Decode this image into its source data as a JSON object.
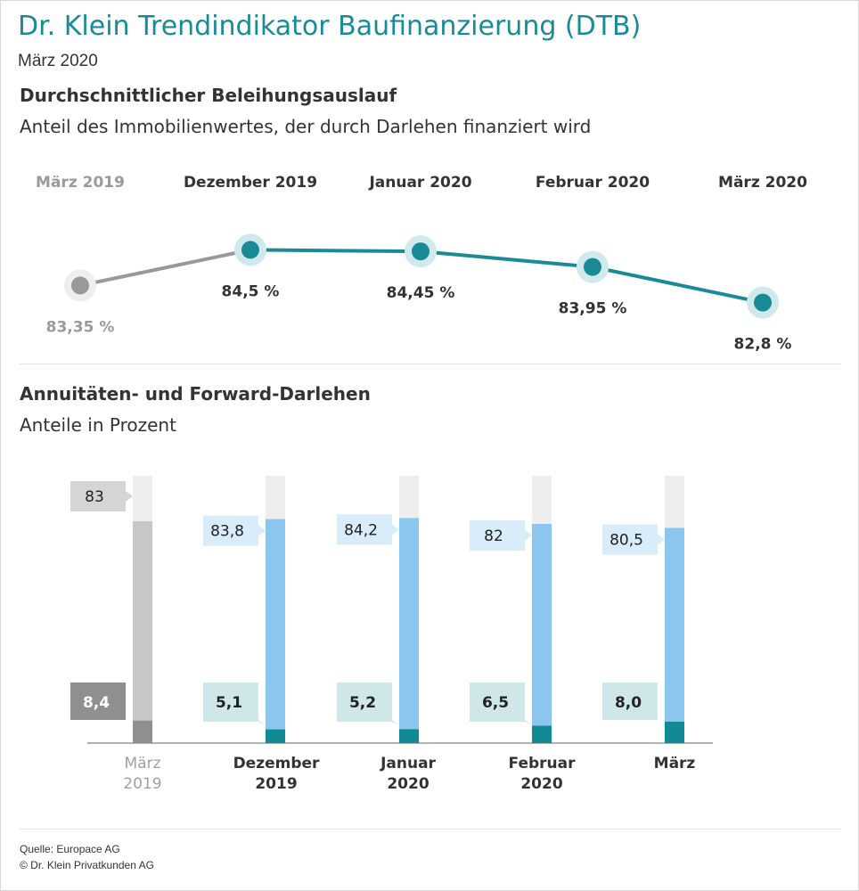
{
  "header": {
    "title": "Dr. Klein Trendindikator Baufinanzierung (DTB)",
    "subtitle": "März 2020"
  },
  "chart_data": [
    {
      "type": "line",
      "title": "Durchschnittlicher Beleihungsauslauf",
      "subtitle": "Anteil des Immobilienwertes, der durch Darlehen finanziert wird",
      "categories": [
        "März 2019",
        "Dezember 2019",
        "Januar 2020",
        "Februar 2020",
        "März 2020"
      ],
      "values": [
        83.35,
        84.5,
        84.45,
        83.95,
        82.8
      ],
      "value_labels": [
        "83,35 %",
        "84,5 %",
        "84,45 %",
        "83,95 %",
        "82,8 %"
      ],
      "comparison_index": 0,
      "ylim": [
        82.5,
        84.8
      ],
      "colors": {
        "main": "#1a8b96",
        "comparison": "#999999",
        "halo_main": "#cfe9ec",
        "halo_comparison": "#eeeeee"
      }
    },
    {
      "type": "bar",
      "title": "Annuitäten- und Forward-Darlehen",
      "subtitle": "Anteile in Prozent",
      "categories": [
        "März 2019",
        "Dezember 2019",
        "Januar 2020",
        "Februar 2020",
        "März"
      ],
      "series": [
        {
          "name": "Annuitätendarlehen",
          "values": [
            83,
            83.8,
            84.2,
            82,
            80.5
          ],
          "labels": [
            "83",
            "83,8",
            "84,2",
            "82",
            "80,5"
          ]
        },
        {
          "name": "Forward-Darlehen",
          "values": [
            8.4,
            5.1,
            5.2,
            6.5,
            8.0
          ],
          "labels": [
            "8,4",
            "5,1",
            "5,2",
            "6,5",
            "8,0"
          ]
        }
      ],
      "comparison_index": 0,
      "ylim": [
        0,
        100
      ],
      "colors": {
        "annuity": "#8ac6ee",
        "forward": "#128a93",
        "rest": "#eeeeee",
        "annuity_label_bg": "#d8ecf9",
        "forward_label_bg": "#cfe7e8",
        "cmp_annuity": "#c8c8c8",
        "cmp_forward": "#8f8f8f",
        "cmp_label_bg": "#d5d5d5"
      }
    }
  ],
  "footer": {
    "source": "Quelle: Europace AG",
    "copyright": "© Dr. Klein Privatkunden AG"
  }
}
